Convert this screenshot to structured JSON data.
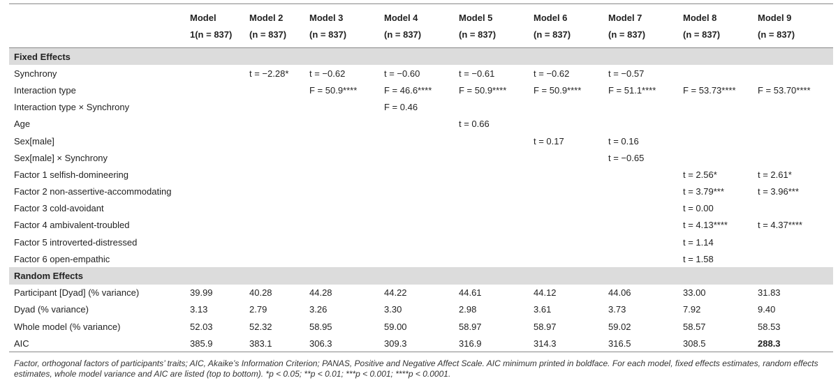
{
  "columns": [
    {
      "name": "Model",
      "n": "1(n = 837)"
    },
    {
      "name": "Model 2",
      "n": "(n = 837)"
    },
    {
      "name": "Model 3",
      "n": "(n = 837)"
    },
    {
      "name": "Model 4",
      "n": "(n = 837)"
    },
    {
      "name": "Model 5",
      "n": "(n = 837)"
    },
    {
      "name": "Model 6",
      "n": "(n = 837)"
    },
    {
      "name": "Model 7",
      "n": "(n = 837)"
    },
    {
      "name": "Model 8",
      "n": "(n = 837)"
    },
    {
      "name": "Model 9",
      "n": "(n = 837)"
    }
  ],
  "sections": [
    {
      "title": "Fixed Effects",
      "rows": [
        {
          "label": "Synchrony",
          "cells": [
            null,
            "t = −2.28*",
            "t = −0.62",
            "t = −0.60",
            "t = −0.61",
            "t = −0.62",
            "t = −0.57",
            null,
            null
          ]
        },
        {
          "label": "Interaction type",
          "cells": [
            null,
            null,
            "F = 50.9****",
            "F = 46.6****",
            "F = 50.9****",
            "F = 50.9****",
            "F = 51.1****",
            "F = 53.73****",
            "F = 53.70****"
          ]
        },
        {
          "label": "Interaction type × Synchrony",
          "cells": [
            null,
            null,
            null,
            "F = 0.46",
            null,
            null,
            null,
            null,
            null
          ]
        },
        {
          "label": "Age",
          "cells": [
            null,
            null,
            null,
            null,
            "t = 0.66",
            null,
            null,
            null,
            null
          ]
        },
        {
          "label": "Sex[male]",
          "cells": [
            null,
            null,
            null,
            null,
            null,
            "t = 0.17",
            "t = 0.16",
            null,
            null
          ]
        },
        {
          "label": "Sex[male] × Synchrony",
          "cells": [
            null,
            null,
            null,
            null,
            null,
            null,
            "t = −0.65",
            null,
            null
          ]
        },
        {
          "label": "Factor 1 selfish-domineering",
          "cells": [
            null,
            null,
            null,
            null,
            null,
            null,
            null,
            "t = 2.56*",
            "t = 2.61*"
          ]
        },
        {
          "label": "Factor 2 non-assertive-accommodating",
          "cells": [
            null,
            null,
            null,
            null,
            null,
            null,
            null,
            "t = 3.79***",
            "t = 3.96***"
          ]
        },
        {
          "label": "Factor 3 cold-avoidant",
          "cells": [
            null,
            null,
            null,
            null,
            null,
            null,
            null,
            "t = 0.00",
            null
          ]
        },
        {
          "label": "Factor 4 ambivalent-troubled",
          "cells": [
            null,
            null,
            null,
            null,
            null,
            null,
            null,
            "t = 4.13****",
            "t = 4.37****"
          ]
        },
        {
          "label": "Factor 5 introverted-distressed",
          "cells": [
            null,
            null,
            null,
            null,
            null,
            null,
            null,
            "t = 1.14",
            null
          ]
        },
        {
          "label": "Factor 6 open-empathic",
          "cells": [
            null,
            null,
            null,
            null,
            null,
            null,
            null,
            "t = 1.58",
            null
          ]
        }
      ]
    },
    {
      "title": "Random Effects",
      "rows": [
        {
          "label": "Participant [Dyad] (% variance)",
          "cells": [
            "39.99",
            "40.28",
            "44.28",
            "44.22",
            "44.61",
            "44.12",
            "44.06",
            "33.00",
            "31.83"
          ]
        },
        {
          "label": "Dyad (% variance)",
          "cells": [
            "3.13",
            "2.79",
            "3.26",
            "3.30",
            "2.98",
            "3.61",
            "3.73",
            "7.92",
            "9.40"
          ]
        },
        {
          "label": "Whole model (% variance)",
          "cells": [
            "52.03",
            "52.32",
            "58.95",
            "59.00",
            "58.97",
            "58.97",
            "59.02",
            "58.57",
            "58.53"
          ]
        },
        {
          "label": "AIC",
          "cells": [
            "385.9",
            "383.1",
            "306.3",
            "309.3",
            "316.9",
            "314.3",
            "316.5",
            "308.5",
            "288.3"
          ],
          "bold_column": 8
        }
      ]
    }
  ],
  "footnote": "Factor, orthogonal factors of participants’ traits; AIC, Akaike’s Information Criterion; PANAS, Positive and Negative Affect Scale. AIC minimum printed in boldface. For each model, fixed effects estimates, random effects estimates, whole model variance and AIC are listed (top to bottom). *p < 0.05; **p < 0.01; ***p < 0.001; ****p < 0.0001."
}
